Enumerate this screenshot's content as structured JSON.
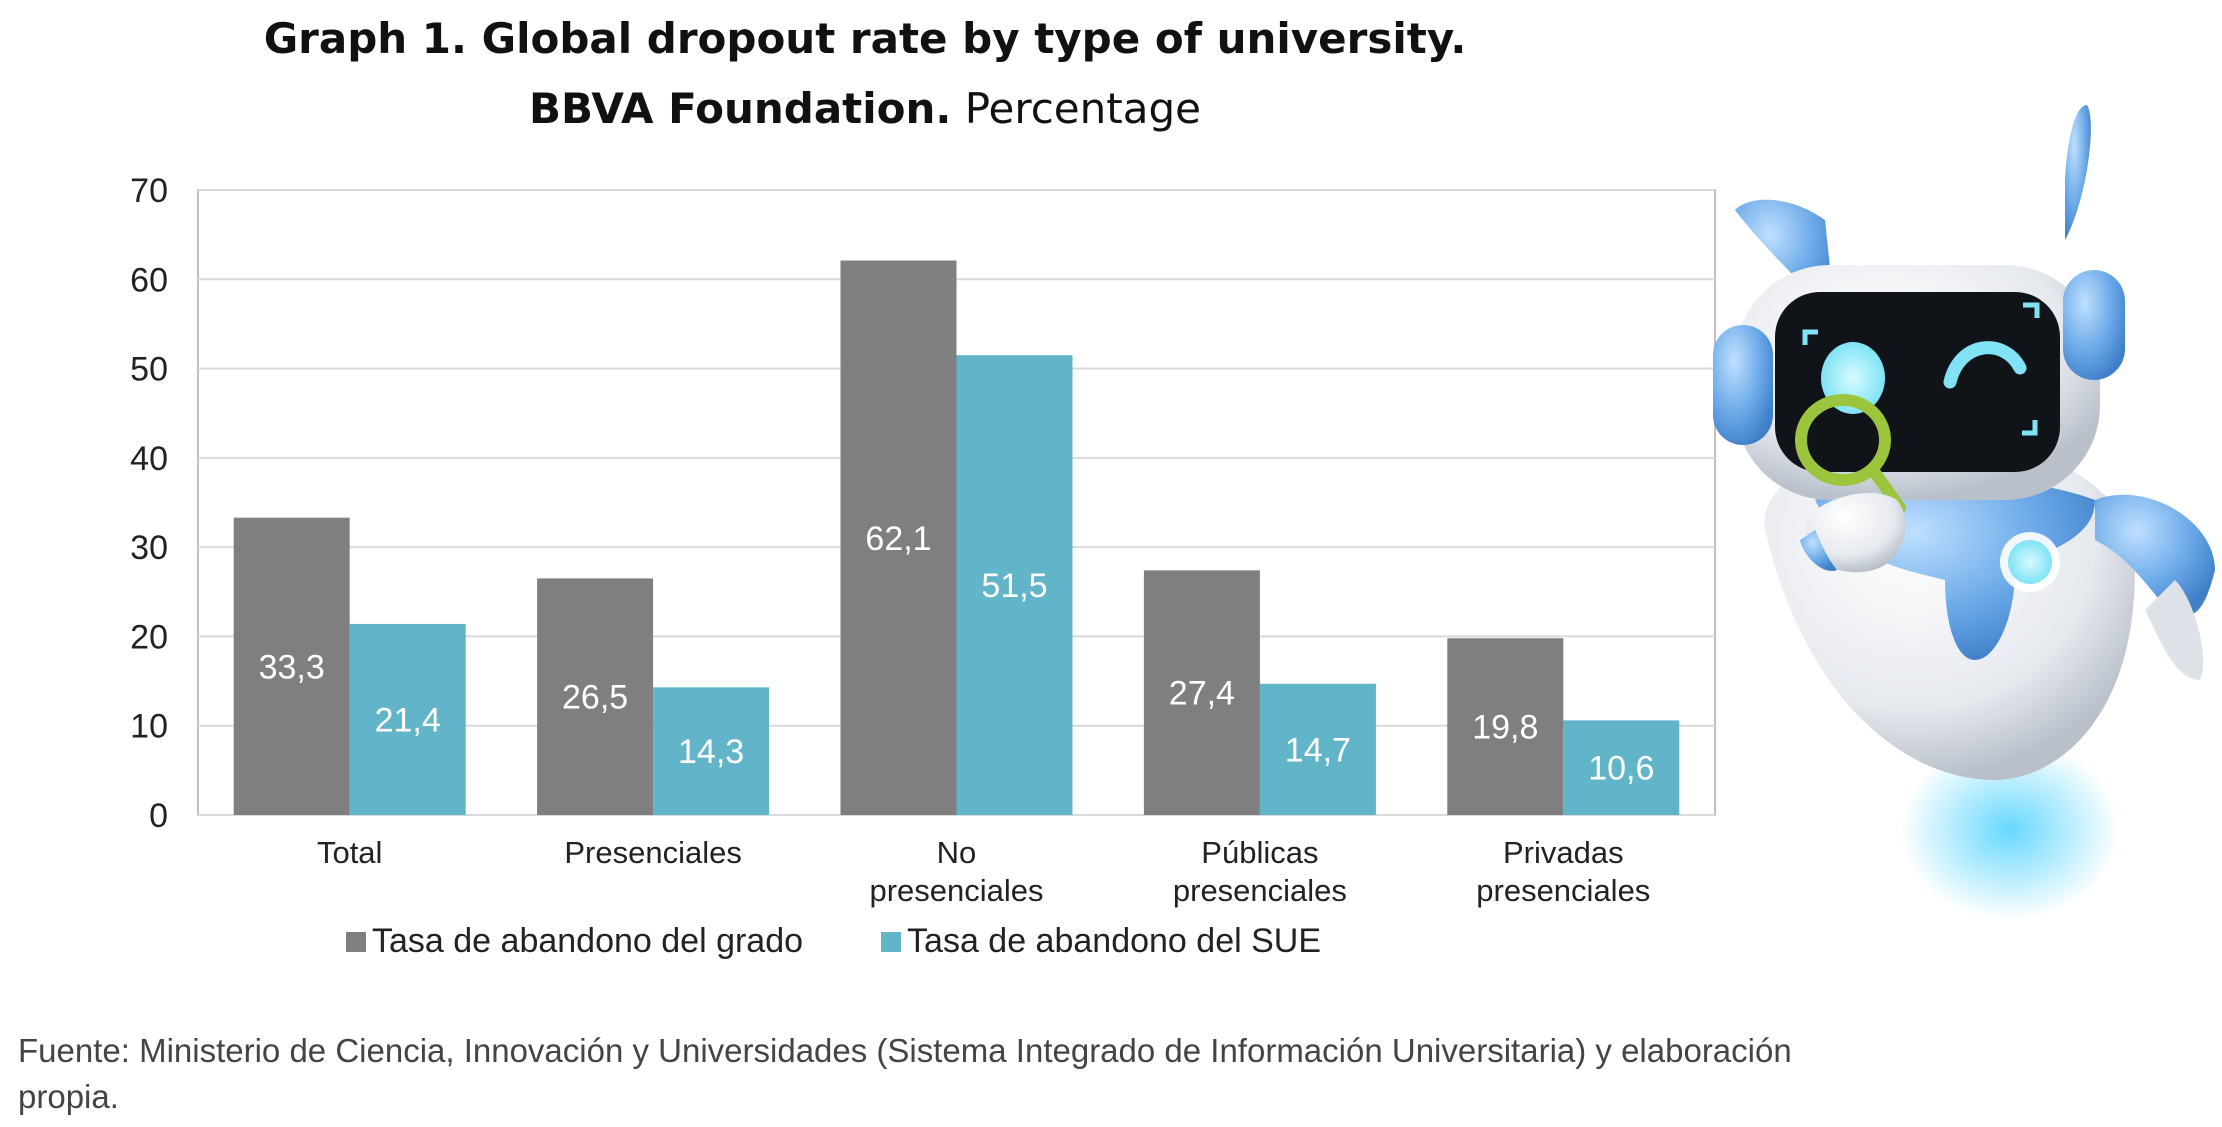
{
  "title_line1": "Graph 1. Global dropout rate by type of university.",
  "title_line2_bold": "BBVA Foundation.",
  "title_line2_rest": "Percentage",
  "source_text": "Fuente: Ministerio de Ciencia, Innovación y Universidades (Sistema Integrado de Información Universitaria) y elaboración propia.",
  "colors": {
    "grado": "#7f7f7f",
    "sue": "#62b5c8",
    "grid": "#d9d9d9",
    "axis": "#bfbfbf"
  },
  "robot": {
    "icon": "robot-with-magnifying-glass"
  },
  "chart_data": {
    "type": "bar",
    "categories": [
      "Total",
      "Presenciales",
      "No presenciales",
      "Públicas presenciales",
      "Privadas presenciales"
    ],
    "series": [
      {
        "name": "Tasa de abandono del grado",
        "values": [
          33.3,
          26.5,
          62.1,
          27.4,
          19.8
        ],
        "labels": [
          "33,3",
          "26,5",
          "62,1",
          "27,4",
          "19,8"
        ]
      },
      {
        "name": "Tasa de abandono del SUE",
        "values": [
          21.4,
          14.3,
          51.5,
          14.7,
          10.6
        ],
        "labels": [
          "21,4",
          "14,3",
          "51,5",
          "14,7",
          "10,6"
        ]
      }
    ],
    "yticks": [
      0,
      10,
      20,
      30,
      40,
      50,
      60,
      70
    ],
    "ylim": [
      0,
      70
    ],
    "grid": true,
    "legend_position": "bottom"
  }
}
